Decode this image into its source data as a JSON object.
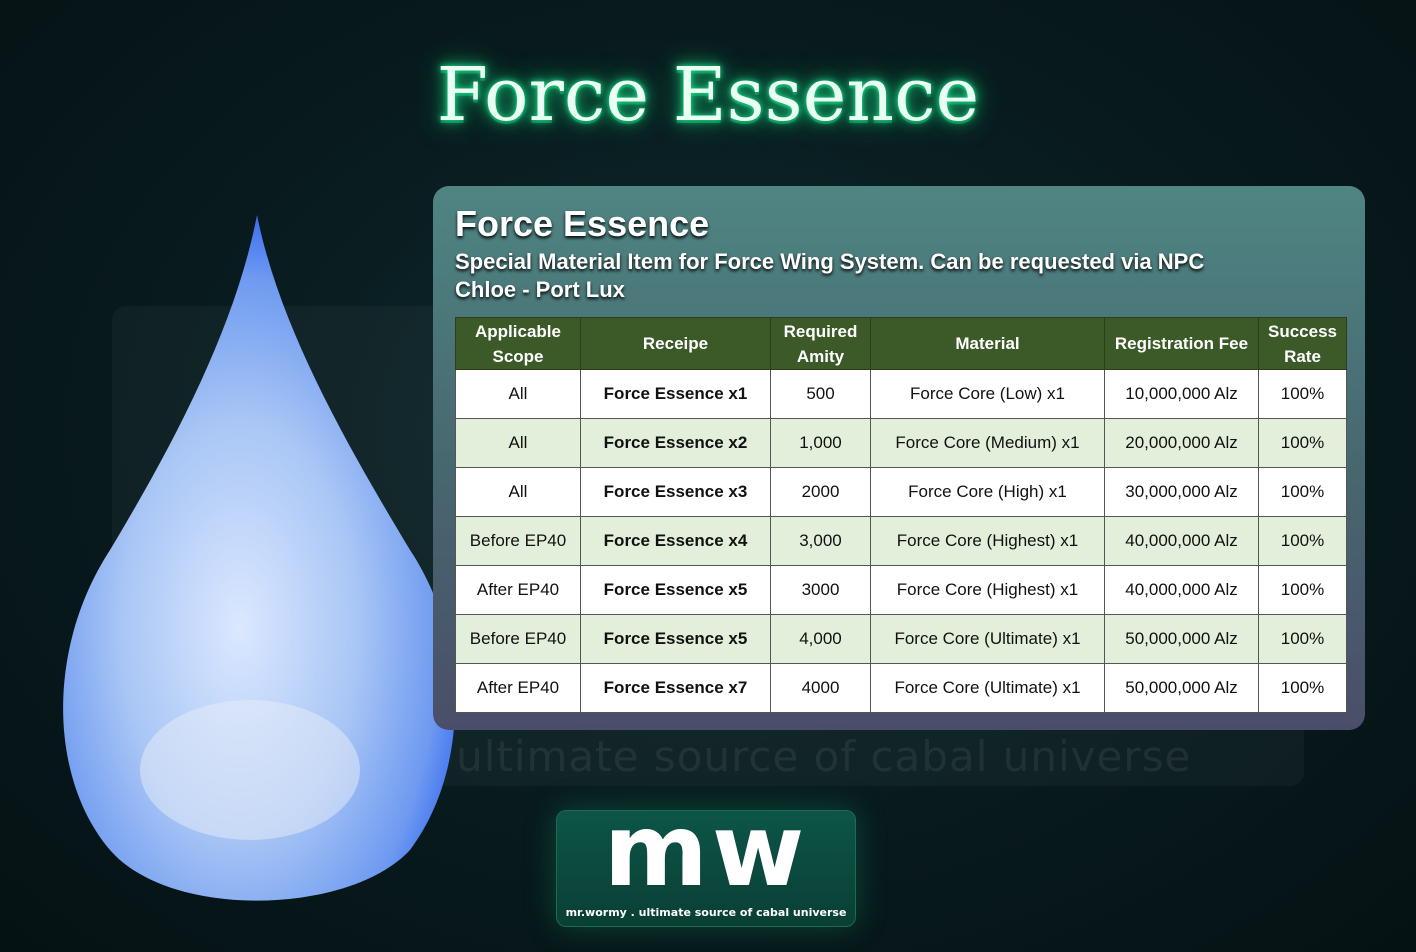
{
  "page_title": "Force Essence",
  "panel": {
    "title": "Force Essence",
    "subtitle": "Special Material Item for Force Wing System. Can be requested via NPC Chloe - Port Lux"
  },
  "table": {
    "headers": [
      "Applicable Scope",
      "Receipe",
      "Required Amity",
      "Material",
      "Registration Fee",
      "Success Rate"
    ],
    "rows": [
      [
        "All",
        "Force Essence x1",
        "500",
        "Force Core (Low) x1",
        "10,000,000 Alz",
        "100%"
      ],
      [
        "All",
        "Force Essence x2",
        "1,000",
        "Force Core (Medium) x1",
        "20,000,000 Alz",
        "100%"
      ],
      [
        "All",
        "Force Essence x3",
        "2000",
        "Force Core (High) x1",
        "30,000,000 Alz",
        "100%"
      ],
      [
        "Before EP40",
        "Force Essence x4",
        "3,000",
        "Force Core (Highest) x1",
        "40,000,000 Alz",
        "100%"
      ],
      [
        "After EP40",
        "Force Essence x5",
        "3000",
        "Force Core (Highest) x1",
        "40,000,000 Alz",
        "100%"
      ],
      [
        "Before EP40",
        "Force Essence x5",
        "4,000",
        "Force Core (Ultimate) x1",
        "50,000,000 Alz",
        "100%"
      ],
      [
        "After EP40",
        "Force Essence x7",
        "4000",
        "Force Core (Ultimate) x1",
        "50,000,000 Alz",
        "100%"
      ]
    ]
  },
  "watermark": "mr.wormy . ultimate source of cabal universe",
  "logo": {
    "mark": "mw",
    "tagline": "mr.wormy . ultimate source of cabal universe"
  },
  "colors": {
    "header_bg": "#3b5a27",
    "row_alt": "#e2efda",
    "title_glow": "#1ee08a"
  }
}
